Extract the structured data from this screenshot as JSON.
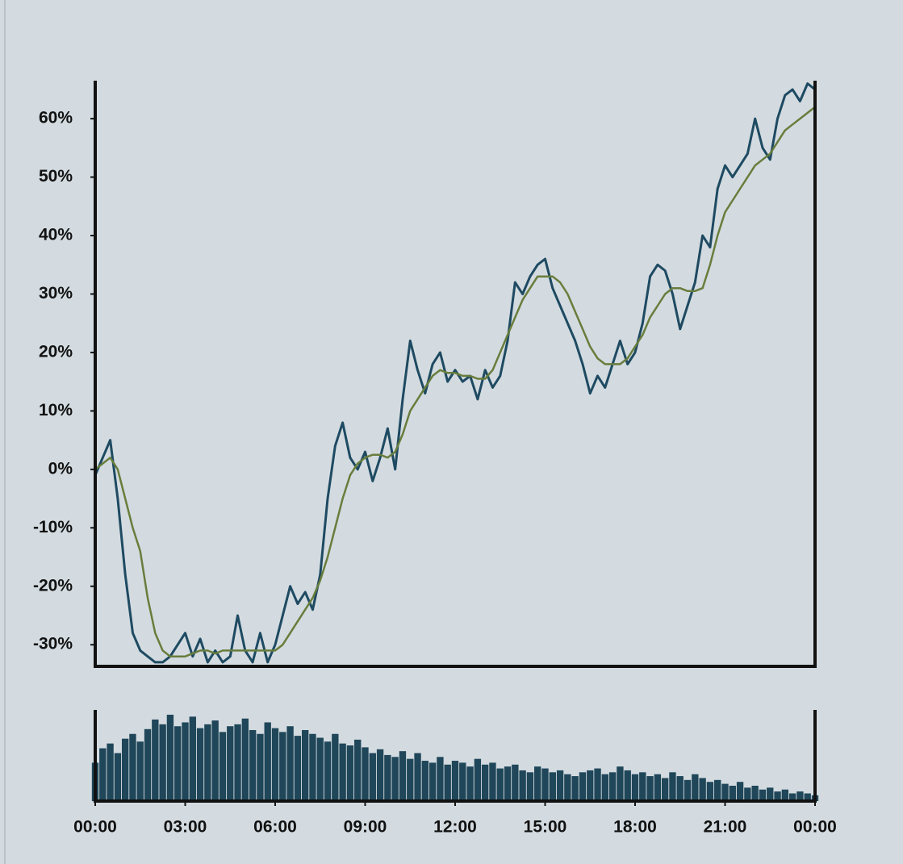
{
  "chart_data": [
    {
      "type": "line",
      "x": [
        0,
        0.25,
        0.5,
        0.75,
        1,
        1.25,
        1.5,
        1.75,
        2,
        2.25,
        2.5,
        2.75,
        3,
        3.25,
        3.5,
        3.75,
        4,
        4.25,
        4.5,
        4.75,
        5,
        5.25,
        5.5,
        5.75,
        6,
        6.25,
        6.5,
        6.75,
        7,
        7.25,
        7.5,
        7.75,
        8,
        8.25,
        8.5,
        8.75,
        9,
        9.25,
        9.5,
        9.75,
        10,
        10.25,
        10.5,
        10.75,
        11,
        11.25,
        11.5,
        11.75,
        12,
        12.25,
        12.5,
        12.75,
        13,
        13.25,
        13.5,
        13.75,
        14,
        14.25,
        14.5,
        14.75,
        15,
        15.25,
        15.5,
        15.75,
        16,
        16.25,
        16.5,
        16.75,
        17,
        17.25,
        17.5,
        17.75,
        18,
        18.25,
        18.5,
        18.75,
        19,
        19.25,
        19.5,
        19.75,
        20,
        20.25,
        20.5,
        20.75,
        21,
        21.25,
        21.5,
        21.75,
        22,
        22.25,
        22.5,
        22.75,
        23,
        23.25,
        23.5,
        23.75,
        24
      ],
      "series": [
        {
          "color": "#1e4a62",
          "values": [
            -1,
            2,
            5,
            -5,
            -18,
            -28,
            -31,
            -32,
            -33,
            -33,
            -32,
            -30,
            -28,
            -32,
            -29,
            -33,
            -31,
            -33,
            -32,
            -25,
            -31,
            -33,
            -28,
            -33,
            -30,
            -25,
            -20,
            -23,
            -21,
            -24,
            -18,
            -5,
            4,
            8,
            2,
            0,
            3,
            -2,
            2,
            7,
            0,
            12,
            22,
            17,
            13,
            18,
            20,
            15,
            17,
            15,
            16,
            12,
            17,
            14,
            16,
            22,
            32,
            30,
            33,
            35,
            36,
            31,
            28,
            25,
            22,
            18,
            13,
            16,
            14,
            18,
            22,
            18,
            20,
            25,
            33,
            35,
            34,
            30,
            24,
            28,
            32,
            40,
            38,
            48,
            52,
            50,
            52,
            54,
            60,
            55,
            53,
            60,
            64,
            65,
            63,
            66,
            65
          ]
        },
        {
          "color": "#687d3c",
          "values": [
            0,
            1,
            2,
            0,
            -5,
            -10,
            -14,
            -22,
            -28,
            -31,
            -32,
            -32,
            -32,
            -31.5,
            -31,
            -31,
            -31.5,
            -31,
            -31,
            -31,
            -31,
            -31,
            -31,
            -31,
            -31,
            -30,
            -28,
            -26,
            -24,
            -22,
            -19,
            -15,
            -10,
            -5,
            -1,
            1,
            2,
            2.5,
            2.5,
            2,
            3,
            6,
            10,
            12,
            14,
            16,
            17,
            16.5,
            16.5,
            16,
            16,
            15.5,
            15.5,
            17,
            20,
            23,
            26,
            29,
            31,
            33,
            33,
            33,
            32,
            30,
            27,
            24,
            21,
            19,
            18,
            18,
            18,
            19,
            21,
            23,
            26,
            28,
            30,
            31,
            31,
            30.5,
            30.5,
            31,
            35,
            40,
            44,
            46,
            48,
            50,
            52,
            53,
            54,
            56,
            58,
            59,
            60,
            61,
            62
          ]
        }
      ],
      "xlim": [
        0,
        24
      ],
      "ylim": [
        -33.7,
        66.5
      ],
      "yticks": [
        {
          "value": 60,
          "label": "60%"
        },
        {
          "value": 50,
          "label": "50%"
        },
        {
          "value": 40,
          "label": "40%"
        },
        {
          "value": 30,
          "label": "30%"
        },
        {
          "value": 20,
          "label": "20%"
        },
        {
          "value": 10,
          "label": "10%"
        },
        {
          "value": 0,
          "label": "0%"
        },
        {
          "value": -10,
          "label": "-10%"
        },
        {
          "value": -20,
          "label": "-20%"
        },
        {
          "value": -30,
          "label": "-30%"
        }
      ]
    },
    {
      "type": "bar",
      "color": "#1f4659",
      "x": [
        0,
        0.25,
        0.5,
        0.75,
        1,
        1.25,
        1.5,
        1.75,
        2,
        2.25,
        2.5,
        2.75,
        3,
        3.25,
        3.5,
        3.75,
        4,
        4.25,
        4.5,
        4.75,
        5,
        5.25,
        5.5,
        5.75,
        6,
        6.25,
        6.5,
        6.75,
        7,
        7.25,
        7.5,
        7.75,
        8,
        8.25,
        8.5,
        8.75,
        9,
        9.25,
        9.5,
        9.75,
        10,
        10.25,
        10.5,
        10.75,
        11,
        11.25,
        11.5,
        11.75,
        12,
        12.25,
        12.5,
        12.75,
        13,
        13.25,
        13.5,
        13.75,
        14,
        14.25,
        14.5,
        14.75,
        15,
        15.25,
        15.5,
        15.75,
        16,
        16.25,
        16.5,
        16.75,
        17,
        17.25,
        17.5,
        17.75,
        18,
        18.25,
        18.5,
        18.75,
        19,
        19.25,
        19.5,
        19.75,
        20,
        20.25,
        20.5,
        20.75,
        21,
        21.25,
        21.5,
        21.75,
        22,
        22.25,
        22.5,
        22.75,
        23,
        23.25,
        23.5,
        23.75,
        24
      ],
      "values": [
        40,
        55,
        60,
        50,
        65,
        70,
        62,
        75,
        85,
        80,
        90,
        78,
        82,
        88,
        76,
        80,
        84,
        72,
        78,
        80,
        86,
        74,
        70,
        82,
        76,
        72,
        78,
        68,
        74,
        70,
        66,
        62,
        70,
        60,
        58,
        64,
        56,
        50,
        54,
        48,
        46,
        52,
        44,
        50,
        42,
        40,
        46,
        38,
        42,
        40,
        36,
        44,
        38,
        40,
        34,
        36,
        38,
        32,
        30,
        36,
        34,
        30,
        32,
        28,
        26,
        30,
        32,
        34,
        28,
        30,
        36,
        32,
        28,
        30,
        26,
        28,
        24,
        30,
        26,
        22,
        28,
        24,
        20,
        22,
        18,
        16,
        20,
        14,
        16,
        12,
        14,
        10,
        12,
        8,
        10,
        8,
        6
      ],
      "xlim": [
        0,
        24
      ],
      "ylim": [
        0,
        95
      ],
      "xticks": [
        {
          "value": 0,
          "label": "00:00"
        },
        {
          "value": 3,
          "label": "03:00"
        },
        {
          "value": 6,
          "label": "06:00"
        },
        {
          "value": 9,
          "label": "09:00"
        },
        {
          "value": 12,
          "label": "12:00"
        },
        {
          "value": 15,
          "label": "15:00"
        },
        {
          "value": 18,
          "label": "18:00"
        },
        {
          "value": 21,
          "label": "21:00"
        },
        {
          "value": 24,
          "label": "00:00"
        }
      ]
    }
  ]
}
